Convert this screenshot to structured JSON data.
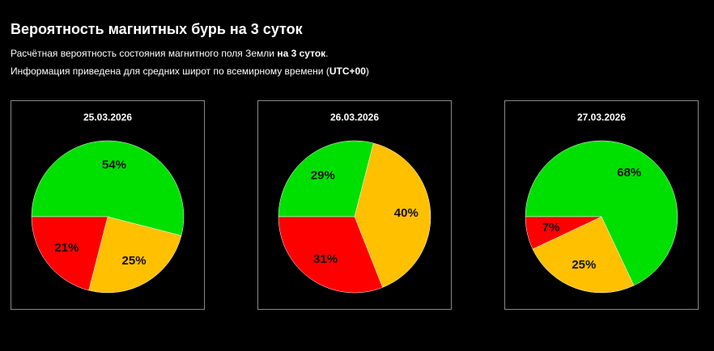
{
  "header": {
    "title": "Вероятность магнитных бурь на 3 суток",
    "lines": [
      [
        "Расчётная вероятность состояния магнитного поля Земли ",
        "на 3 суток",
        "."
      ],
      [
        "Информация приведена для средних широт по всемирному времени (",
        "UTC+00",
        ")"
      ]
    ]
  },
  "chart_data": [
    {
      "type": "pie",
      "title": "25.03.2026",
      "values": [
        54,
        25,
        21
      ],
      "value_labels": [
        "54%",
        "25%",
        "21%"
      ],
      "colors": [
        "#00e000",
        "#ffc000",
        "#ff0000"
      ]
    },
    {
      "type": "pie",
      "title": "26.03.2026",
      "values": [
        29,
        40,
        31
      ],
      "value_labels": [
        "29%",
        "40%",
        "31%"
      ],
      "colors": [
        "#00e000",
        "#ffc000",
        "#ff0000"
      ]
    },
    {
      "type": "pie",
      "title": "27.03.2026",
      "values": [
        68,
        25,
        7
      ],
      "value_labels": [
        "68%",
        "25%",
        "7%"
      ],
      "colors": [
        "#00e000",
        "#ffc000",
        "#ff0000"
      ]
    }
  ]
}
